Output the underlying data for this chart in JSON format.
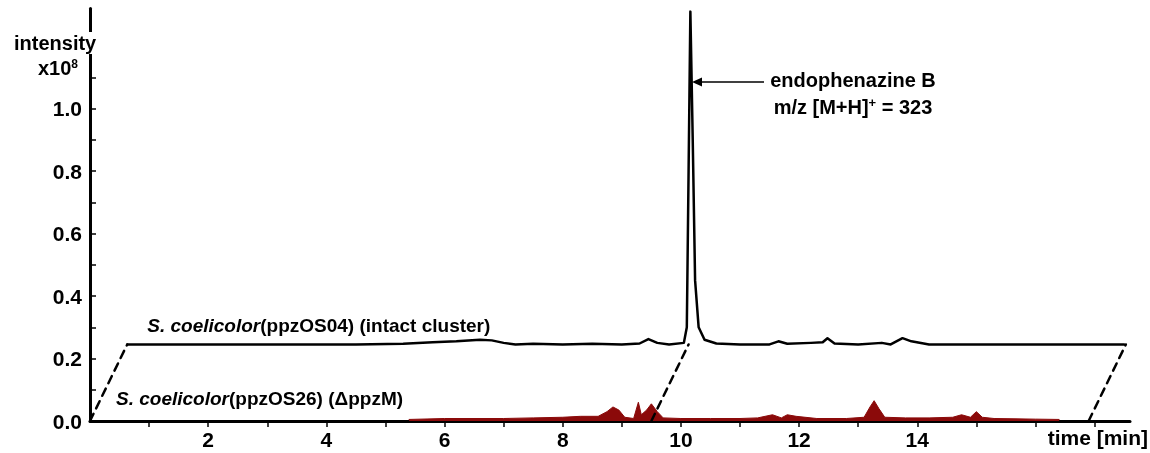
{
  "chart_data": {
    "type": "line",
    "xlabel": "time [min]",
    "ylabel": "intensity",
    "annotations": [
      "x10$^{8}$",
      "endophenazine B\nm/z [M+H]$^{+}$ = 323"
    ],
    "xlim": [
      0,
      17.6
    ],
    "ylim": [
      0,
      1.32
    ],
    "xticks": [
      {
        "value": 1,
        "label": null
      },
      2,
      {
        "value": 3,
        "label": null
      },
      4,
      {
        "value": 5,
        "label": null
      },
      6,
      {
        "value": 7,
        "label": null
      },
      8,
      {
        "value": 9,
        "label": null
      },
      10,
      {
        "value": 11,
        "label": null
      },
      12,
      {
        "value": 13,
        "label": null
      },
      14,
      {
        "value": 15,
        "label": null
      },
      {
        "value": 16,
        "label": null
      },
      {
        "value": 17,
        "label": null
      }
    ],
    "yticks": [
      {
        "value": 0,
        "label": "0.0"
      },
      {
        "value": 0.1,
        "label": null
      },
      {
        "value": 0.2,
        "label": "0.2"
      },
      {
        "value": 0.3,
        "label": null
      },
      {
        "value": 0.4,
        "label": "0.4"
      },
      {
        "value": 0.5,
        "label": null
      },
      {
        "value": 0.6,
        "label": "0.6"
      },
      {
        "value": 0.7,
        "label": null
      },
      {
        "value": 0.8,
        "label": "0.8"
      },
      {
        "value": 0.9,
        "label": null
      },
      {
        "value": 1.0,
        "label": "1.0"
      },
      {
        "value": 1.1,
        "label": null
      }
    ],
    "grid": false,
    "legend": false,
    "marker": "none",
    "series": [
      {
        "name": "S. coelicolor(ppzOS04) (intact cluster)",
        "color": "#000000",
        "line_style": "solid",
        "x": [
          0.63,
          1.5,
          3,
          4.5,
          5.3,
          5.8,
          6.2,
          6.6,
          6.8,
          7.0,
          7.2,
          7.5,
          8,
          8.5,
          9,
          9.3,
          9.45,
          9.6,
          9.8,
          10.05,
          10.1,
          10.13,
          10.16,
          10.2,
          10.24,
          10.3,
          10.4,
          10.6,
          11,
          11.5,
          11.65,
          11.8,
          12.2,
          12.4,
          12.48,
          12.6,
          13,
          13.4,
          13.55,
          13.75,
          13.9,
          14.2,
          15,
          16,
          17,
          17.5
        ],
        "values": [
          0.245,
          0.245,
          0.245,
          0.245,
          0.247,
          0.252,
          0.255,
          0.26,
          0.258,
          0.25,
          0.245,
          0.247,
          0.245,
          0.247,
          0.245,
          0.248,
          0.262,
          0.25,
          0.245,
          0.25,
          0.3,
          0.8,
          1.31,
          0.9,
          0.45,
          0.3,
          0.26,
          0.248,
          0.245,
          0.245,
          0.255,
          0.247,
          0.25,
          0.252,
          0.265,
          0.248,
          0.245,
          0.25,
          0.245,
          0.265,
          0.255,
          0.245,
          0.245,
          0.245,
          0.245,
          0.245
        ]
      },
      {
        "name": "S. coelicolor(ppzOS26) (ΔppzM)",
        "type": "area",
        "color": "#8b0a0a",
        "x": [
          5.4,
          6,
          7,
          7.5,
          8,
          8.3,
          8.6,
          8.75,
          8.85,
          8.95,
          9.05,
          9.2,
          9.28,
          9.33,
          9.42,
          9.5,
          9.6,
          9.7,
          10,
          10.5,
          11,
          11.3,
          11.55,
          11.7,
          11.8,
          11.95,
          12.3,
          12.8,
          13.1,
          13.2,
          13.27,
          13.35,
          13.45,
          13.8,
          14.2,
          14.6,
          14.75,
          14.9,
          15.0,
          15.1,
          15.3,
          16,
          16.4
        ],
        "values": [
          0.005,
          0.008,
          0.008,
          0.01,
          0.012,
          0.015,
          0.015,
          0.03,
          0.045,
          0.035,
          0.012,
          0.008,
          0.06,
          0.02,
          0.035,
          0.055,
          0.03,
          0.01,
          0.008,
          0.008,
          0.008,
          0.01,
          0.02,
          0.01,
          0.02,
          0.015,
          0.008,
          0.008,
          0.012,
          0.045,
          0.065,
          0.04,
          0.012,
          0.01,
          0.01,
          0.012,
          0.02,
          0.012,
          0.03,
          0.012,
          0.008,
          0.006,
          0.005
        ]
      },
      {
        "color": "#000000",
        "line_style": "dashed",
        "x": [
          0,
          0.63
        ],
        "values": [
          0,
          0.245
        ]
      },
      {
        "color": "#000000",
        "line_style": "dashed",
        "x": [
          9.5,
          10.13
        ],
        "values": [
          0,
          0.245
        ]
      },
      {
        "color": "#000000",
        "line_style": "dashed",
        "x": [
          16.9,
          17.53
        ],
        "values": [
          0,
          0.245
        ]
      }
    ]
  }
}
